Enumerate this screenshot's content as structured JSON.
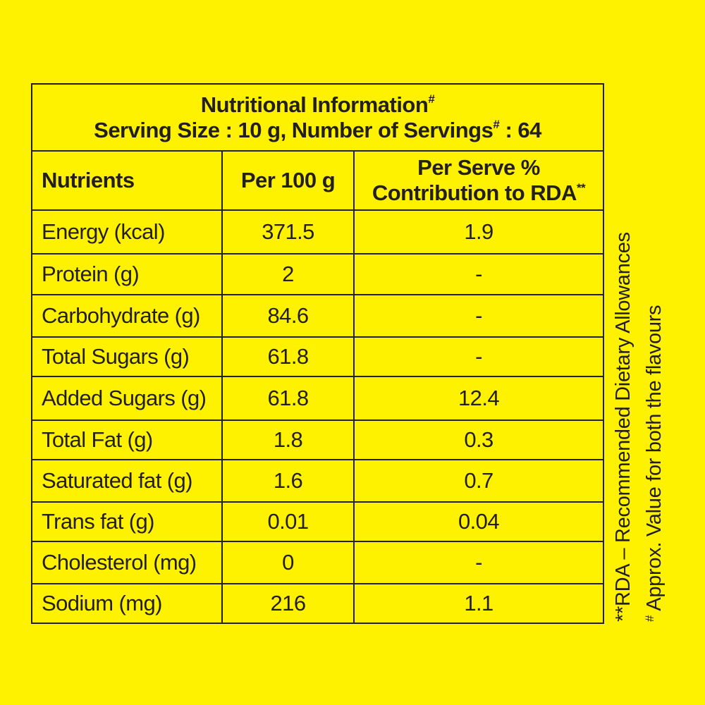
{
  "title": {
    "line1_text": "Nutritional Information",
    "line1_mark": "#",
    "line2_text": "Serving Size : 10 g, Number of Servings",
    "line2_mark": "#",
    "line2_suffix": " : 64"
  },
  "headers": {
    "nutrients": "Nutrients",
    "per100": "Per 100 g",
    "perServe_line1": "Per Serve %",
    "perServe_line2": "Contribution to RDA",
    "perServe_mark": "**"
  },
  "rows": [
    {
      "name": "Energy (kcal)",
      "per100": "371.5",
      "rda": "1.9"
    },
    {
      "name": "Protein (g)",
      "per100": "2",
      "rda": "-"
    },
    {
      "name": "Carbohydrate (g)",
      "per100": "84.6",
      "rda": "-"
    },
    {
      "name": "Total Sugars (g)",
      "per100": "61.8",
      "rda": "-"
    },
    {
      "name": "Added Sugars (g)",
      "per100": "61.8",
      "rda": "12.4"
    },
    {
      "name": "Total Fat (g)",
      "per100": "1.8",
      "rda": "0.3"
    },
    {
      "name": "Saturated fat (g)",
      "per100": "1.6",
      "rda": "0.7"
    },
    {
      "name": "Trans fat (g)",
      "per100": "0.01",
      "rda": "0.04"
    },
    {
      "name": "Cholesterol (mg)",
      "per100": "0",
      "rda": "-"
    },
    {
      "name": "Sodium (mg)",
      "per100": "216",
      "rda": "1.1"
    }
  ],
  "footnotes": {
    "rda_note": "**RDA – Recommended Dietary Allowances",
    "approx_mark": "#",
    "approx_note": " Approx. Value for both the flavours"
  },
  "colors": {
    "background": "#fff200",
    "ink": "#231f20"
  }
}
